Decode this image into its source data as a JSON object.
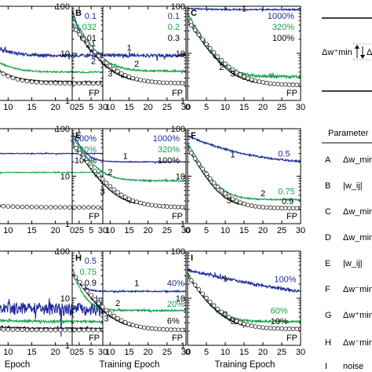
{
  "chart_data": {
    "type": "line",
    "x_label": "Training Epoch",
    "x_label_partial": "Epoch",
    "xlim": [
      0,
      30
    ],
    "ylim": [
      1,
      100
    ],
    "yscale": "log",
    "x_ticks": [
      0,
      5,
      10,
      15,
      20,
      25,
      30
    ],
    "y_ticks": [
      1,
      10,
      100
    ],
    "y_tick_labels": [
      "1",
      "10",
      "100"
    ],
    "fp_label": "FP",
    "colors": {
      "1": "#1f2a9a",
      "2": "#16a04a",
      "3": "#000000"
    },
    "panels": [
      {
        "letter": "",
        "col": 0,
        "row": 0,
        "legend": [
          {
            "text": "0.1",
            "color": "#1f2a9a"
          },
          {
            "text": "0.032",
            "color": "#16a04a"
          },
          {
            "text": "0.01",
            "color": "#000000"
          }
        ],
        "curve_labels": [
          {
            "text": "1",
            "x": 28,
            "y": 14
          },
          {
            "text": "2",
            "x": 28,
            "y": 6
          }
        ],
        "series": [
          {
            "name": "1",
            "start": 60,
            "end": 9,
            "tau": 3,
            "noise": 0.08
          },
          {
            "name": "2",
            "start": 40,
            "end": 4,
            "tau": 3,
            "noise": 0.04
          },
          {
            "name": "3",
            "start": 30,
            "end": 2.5,
            "tau": 3,
            "noise": 0.03
          },
          {
            "name": "FP",
            "start": 30,
            "end": 2.3,
            "tau": 3,
            "noise": 0.02
          }
        ]
      },
      {
        "letter": "B",
        "col": 1,
        "row": 0,
        "legend": [
          {
            "text": "0.1",
            "color": "#1f2a9a"
          },
          {
            "text": "0.2",
            "color": "#16a04a"
          },
          {
            "text": "0.3",
            "color": "#000000"
          }
        ],
        "curve_labels": [
          {
            "text": "1",
            "x": 15,
            "y": 11.5
          },
          {
            "text": "2",
            "x": 17,
            "y": 5.2
          },
          {
            "text": "3",
            "x": 10,
            "y": 3.2
          }
        ],
        "series": [
          {
            "name": "1",
            "start": 80,
            "end": 9,
            "tau": 1.5,
            "noise": 0.08
          },
          {
            "name": "2",
            "start": 60,
            "end": 4.2,
            "tau": 3,
            "noise": 0.04
          },
          {
            "name": "3",
            "start": 40,
            "end": 2.4,
            "tau": 3.5,
            "noise": 0.03
          },
          {
            "name": "FP",
            "start": 40,
            "end": 2.3,
            "tau": 4,
            "noise": 0.02
          }
        ]
      },
      {
        "letter": "C",
        "col": 2,
        "row": 0,
        "legend": [
          {
            "text": "1000%",
            "color": "#1f2a9a"
          },
          {
            "text": "320%",
            "color": "#16a04a"
          },
          {
            "text": "100%",
            "color": "#000000"
          }
        ],
        "curve_labels": [
          {
            "text": "1",
            "x": 15,
            "y": 78
          },
          {
            "text": "2",
            "x": 9,
            "y": 4.5
          },
          {
            "text": "3",
            "x": 12,
            "y": 3.2
          }
        ],
        "series": [
          {
            "name": "1",
            "start": 90,
            "end": 85,
            "tau": 5,
            "noise": 0.03
          },
          {
            "name": "2",
            "start": 70,
            "end": 3.2,
            "tau": 3,
            "noise": 0.07
          },
          {
            "name": "3",
            "start": 50,
            "end": 2.2,
            "tau": 3.5,
            "noise": 0.03
          },
          {
            "name": "FP",
            "start": 50,
            "end": 2.1,
            "tau": 4,
            "noise": 0.02
          }
        ]
      },
      {
        "letter": "",
        "col": 0,
        "row": 1,
        "legend": [
          {
            "text": "1000%",
            "color": "#1f2a9a"
          },
          {
            "text": "320%",
            "color": "#16a04a"
          },
          {
            "text": "100%",
            "color": "#000000"
          }
        ],
        "curve_labels": [],
        "series": [
          {
            "name": "1",
            "start": 30,
            "end": 30,
            "tau": 5,
            "noise": 0.02
          },
          {
            "name": "2",
            "start": 12,
            "end": 12,
            "tau": 5,
            "noise": 0.02
          },
          {
            "name": "FP",
            "start": 3,
            "end": 2.2,
            "tau": 5,
            "noise": 0.02
          }
        ]
      },
      {
        "letter": "E",
        "col": 1,
        "row": 1,
        "legend": [
          {
            "text": "1000%",
            "color": "#1f2a9a"
          },
          {
            "text": "320%",
            "color": "#16a04a"
          },
          {
            "text": "100%",
            "color": "#000000"
          }
        ],
        "curve_labels": [
          {
            "text": "1",
            "x": 14,
            "y": 23
          },
          {
            "text": "2",
            "x": 10,
            "y": 10.5
          },
          {
            "text": "3",
            "x": 8,
            "y": 4.2
          }
        ],
        "series": [
          {
            "name": "1",
            "start": 85,
            "end": 20,
            "tau": 2,
            "noise": 0.02
          },
          {
            "name": "2",
            "start": 70,
            "end": 8,
            "tau": 3,
            "noise": 0.03
          },
          {
            "name": "3",
            "start": 50,
            "end": 2.3,
            "tau": 3.5,
            "noise": 0.02
          },
          {
            "name": "FP",
            "start": 50,
            "end": 2.2,
            "tau": 4,
            "noise": 0.02
          }
        ]
      },
      {
        "letter": "F",
        "col": 2,
        "row": 1,
        "legend": [],
        "curve_labels": [
          {
            "text": "1",
            "x": 12,
            "y": 25
          },
          {
            "text": "2",
            "x": 20,
            "y": 3.8
          },
          {
            "text": "3",
            "x": 11,
            "y": 2.7
          }
        ],
        "series": [
          {
            "name": "1",
            "start": 70,
            "end": 18,
            "tau": 10,
            "noise": 0.04
          },
          {
            "name": "2",
            "start": 50,
            "end": 3.2,
            "tau": 3,
            "noise": 0.03
          },
          {
            "name": "3",
            "start": 40,
            "end": 2.2,
            "tau": 3,
            "noise": 0.02
          },
          {
            "name": "FP",
            "start": 40,
            "end": 2.1,
            "tau": 3.5,
            "noise": 0.02
          }
        ],
        "value_labels": [
          {
            "text": "0.5",
            "color": "#1f2a9a",
            "x": 24,
            "y": 26
          },
          {
            "text": "0.75",
            "color": "#16a04a",
            "x": 24,
            "y": 4.2
          },
          {
            "text": "0.9",
            "color": "#000000",
            "x": 25,
            "y": 2.6
          }
        ]
      },
      {
        "letter": "",
        "col": 0,
        "row": 2,
        "legend": [
          {
            "text": "0.5",
            "color": "#1f2a9a"
          },
          {
            "text": "0.75",
            "color": "#16a04a"
          },
          {
            "text": "0.9",
            "color": "#000000"
          }
        ],
        "curve_labels": [
          {
            "text": "2",
            "x": 2,
            "y": 3.2
          }
        ],
        "series": [
          {
            "name": "1",
            "start": 8,
            "end": 6,
            "tau": 5,
            "noise": 0.3
          },
          {
            "name": "2",
            "start": 4,
            "end": 3.2,
            "tau": 5,
            "noise": 0.06
          },
          {
            "name": "3",
            "start": 3,
            "end": 2.3,
            "tau": 5,
            "noise": 0.03
          },
          {
            "name": "FP",
            "start": 2.5,
            "end": 2.1,
            "tau": 5,
            "noise": 0.02
          }
        ]
      },
      {
        "letter": "H",
        "col": 1,
        "row": 2,
        "legend": [],
        "curve_labels": [
          {
            "text": "1",
            "x": 17,
            "y": 18
          },
          {
            "text": "2",
            "x": 12,
            "y": 6.8
          },
          {
            "text": "3",
            "x": 9,
            "y": 3.2
          }
        ],
        "series": [
          {
            "name": "1",
            "start": 40,
            "end": 14,
            "tau": 1.5,
            "noise": 0.03
          },
          {
            "name": "2",
            "start": 35,
            "end": 5.5,
            "tau": 2,
            "noise": 0.04
          },
          {
            "name": "3",
            "start": 35,
            "end": 2.2,
            "tau": 3.5,
            "noise": 0.02
          },
          {
            "name": "FP",
            "start": 35,
            "end": 2.1,
            "tau": 4,
            "noise": 0.02
          }
        ],
        "value_labels": [
          {
            "text": "40%",
            "color": "#1f2a9a",
            "x": 25,
            "y": 18
          },
          {
            "text": "20%",
            "color": "#16a04a",
            "x": 25,
            "y": 6.6
          },
          {
            "text": "6%",
            "color": "#000000",
            "x": 25,
            "y": 2.9
          }
        ]
      },
      {
        "letter": "I",
        "col": 2,
        "row": 2,
        "legend": [],
        "curve_labels": [
          {
            "text": "1",
            "x": 10,
            "y": 23
          },
          {
            "text": "2",
            "x": 10,
            "y": 4
          },
          {
            "text": "3",
            "x": 12,
            "y": 2.8
          }
        ],
        "series": [
          {
            "name": "1",
            "start": 40,
            "end": 8,
            "tau": 18,
            "noise": 0.07
          },
          {
            "name": "2",
            "start": 35,
            "end": 3.2,
            "tau": 3,
            "noise": 0.05
          },
          {
            "name": "3",
            "start": 30,
            "end": 2.3,
            "tau": 3.5,
            "noise": 0.03
          },
          {
            "name": "FP",
            "start": 30,
            "end": 2.2,
            "tau": 4,
            "noise": 0.02
          }
        ],
        "value_labels": [
          {
            "text": "100%",
            "color": "#1f2a9a",
            "x": 23,
            "y": 22
          },
          {
            "text": "60%",
            "color": "#16a04a",
            "x": 22,
            "y": 4.7
          },
          {
            "text": "10%",
            "color": "#000000",
            "x": 22,
            "y": 2.8
          }
        ]
      }
    ]
  },
  "legend_inset": {
    "label_left": "Δw⁺min",
    "label_right": "Δ"
  },
  "param_table": {
    "header": "Parameter",
    "rows": [
      {
        "key": "A",
        "value": "Δw_min"
      },
      {
        "key": "B",
        "value": "|w_ij|"
      },
      {
        "key": "C",
        "value": "Δw_min"
      },
      {
        "key": "D",
        "value": "Δw_min"
      },
      {
        "key": "E",
        "value": "|w_ij|"
      },
      {
        "key": "F",
        "value": "Δw⁻min"
      },
      {
        "key": "G",
        "value": "Δw⁺min"
      },
      {
        "key": "H",
        "value": "Δw⁻min / Δw⁺min"
      },
      {
        "key": "I",
        "value": "noise"
      }
    ]
  }
}
